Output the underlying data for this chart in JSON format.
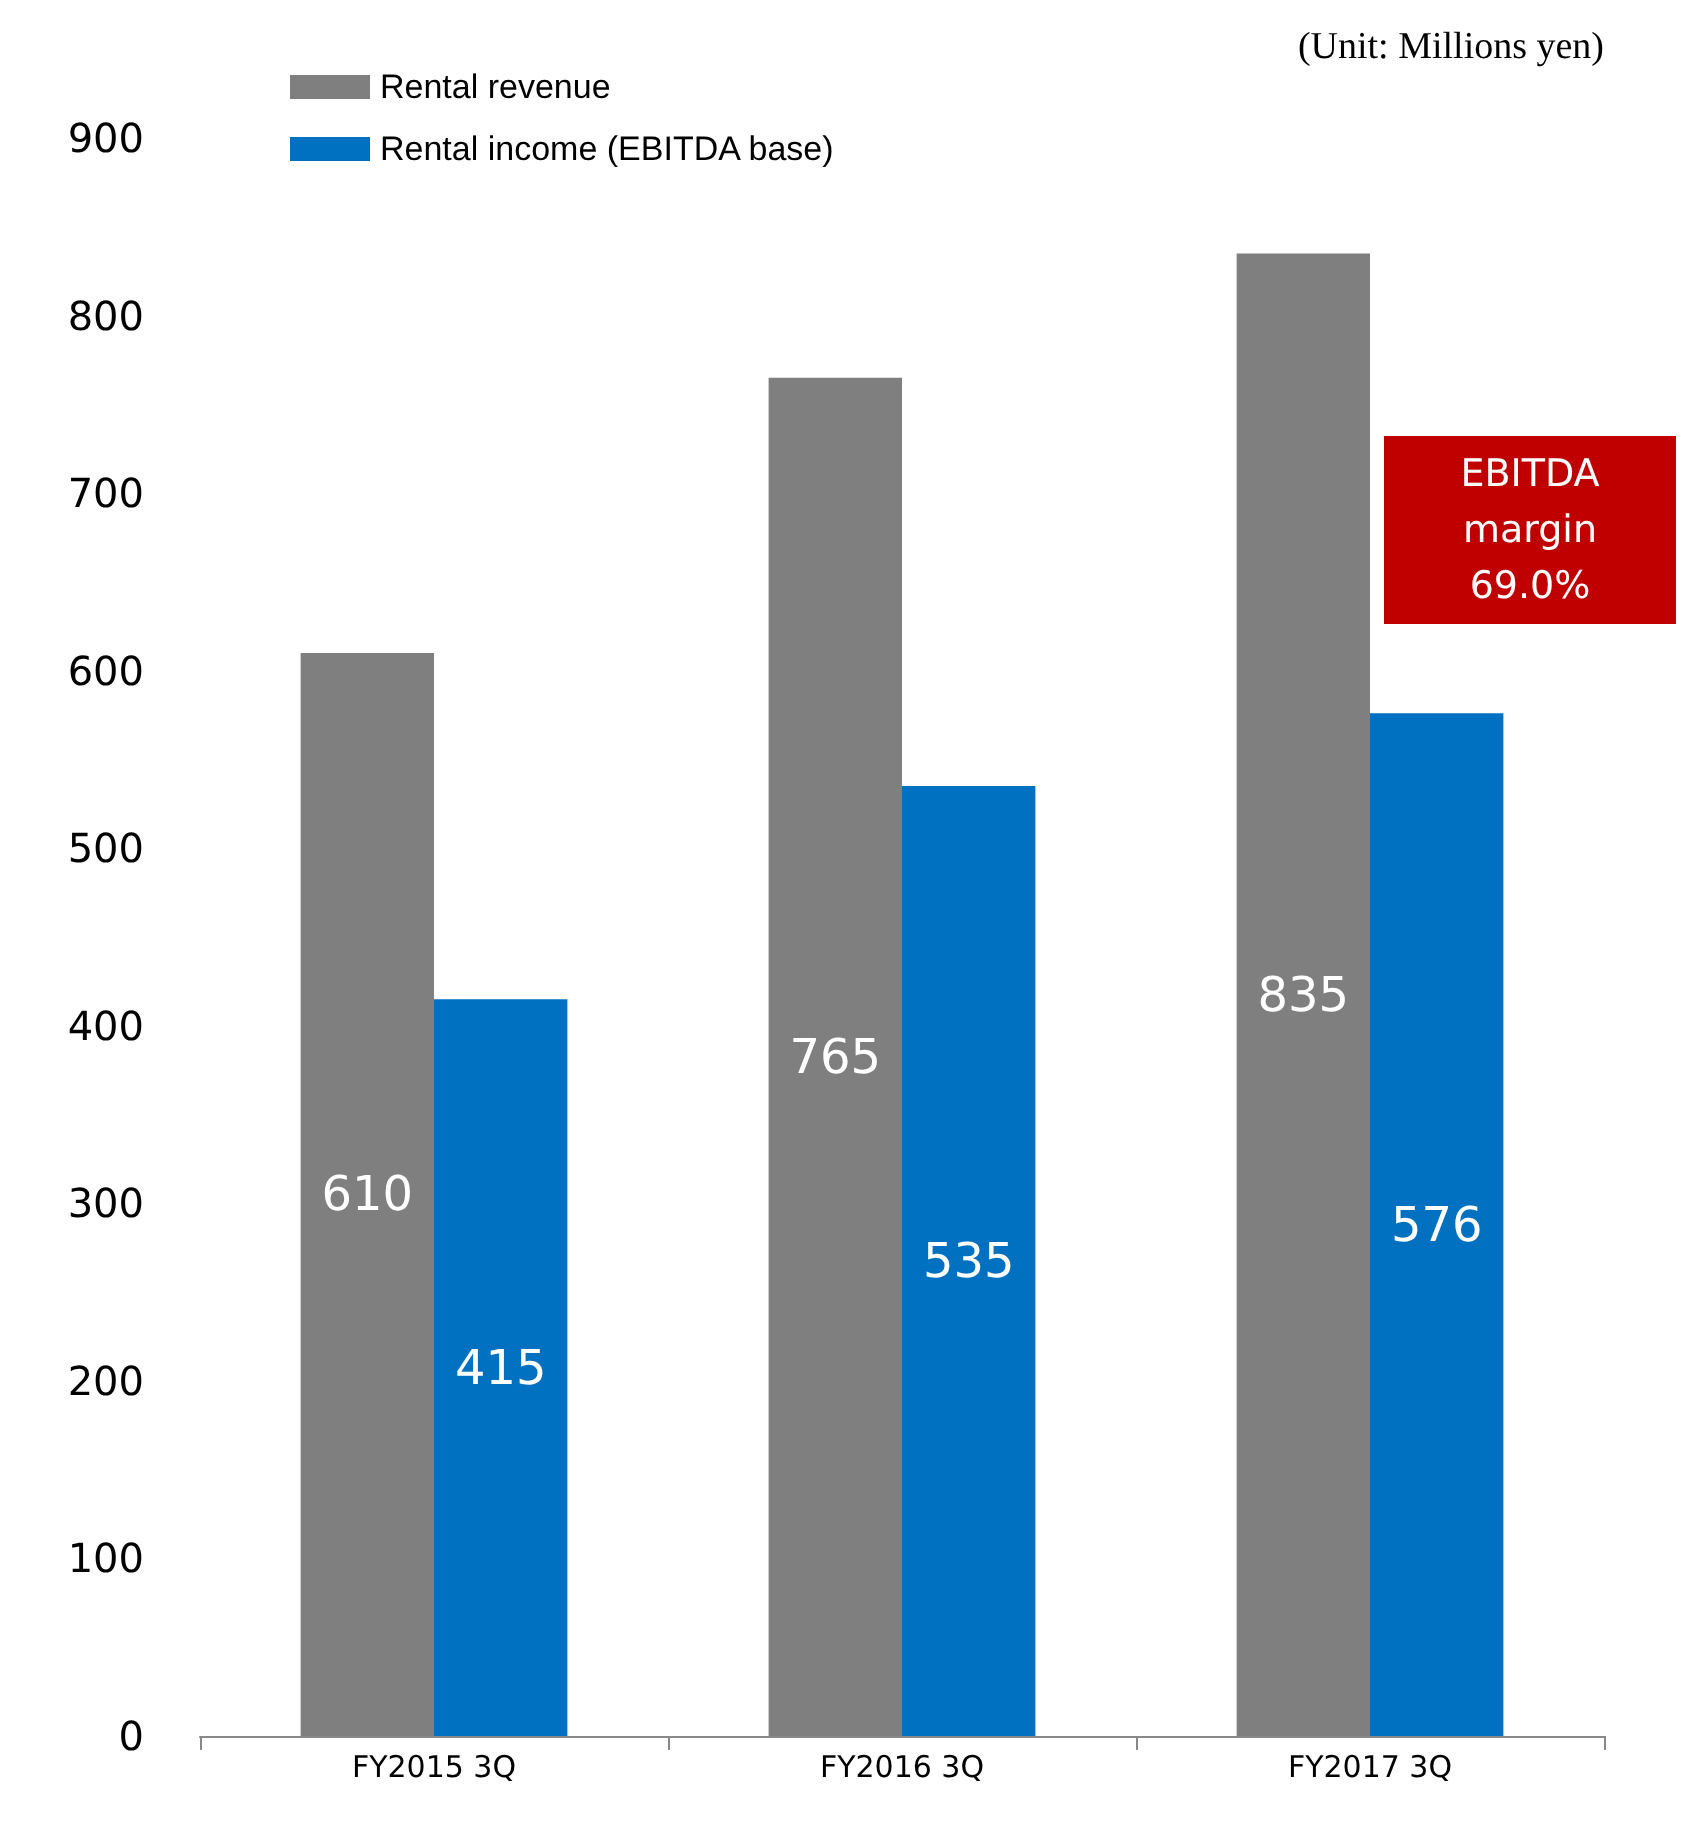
{
  "chart_data": {
    "type": "bar",
    "categories": [
      "FY2015 3Q",
      "FY2016 3Q",
      "FY2017 3Q"
    ],
    "series": [
      {
        "name": "Rental revenue",
        "color": "#7f7f7f",
        "values": [
          610,
          765,
          835
        ]
      },
      {
        "name": "Rental income (EBITDA base)",
        "color": "#0070c0",
        "values": [
          415,
          535,
          576
        ]
      }
    ],
    "ylim": [
      0,
      900
    ],
    "yticks": [
      0,
      100,
      200,
      300,
      400,
      500,
      600,
      700,
      800,
      900
    ],
    "grid": false,
    "legend": "top left",
    "data_labels": true,
    "annotations": [
      "(Unit: Millions yen)",
      "EBITDA\nmargin\n69.0%"
    ]
  }
}
